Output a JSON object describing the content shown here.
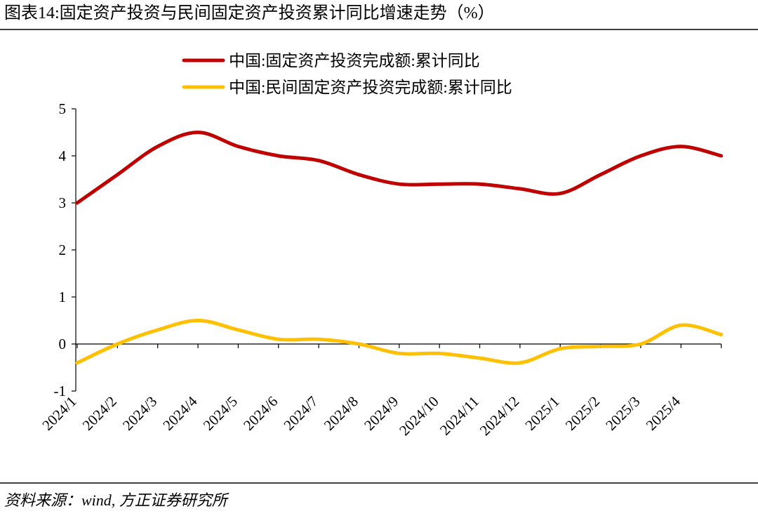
{
  "chart_data": {
    "type": "line",
    "title": "图表14:固定资产投资与民间固定资产投资累计同比增速走势（%）",
    "source": "资料来源：wind, 方正证券研究所",
    "categories": [
      "2024/1",
      "2024/2",
      "2024/3",
      "2024/4",
      "2024/5",
      "2024/6",
      "2024/7",
      "2024/8",
      "2024/9",
      "2024/10",
      "2024/11",
      "2024/12",
      "2025/1",
      "2025/2",
      "2025/3",
      "2025/4",
      null
    ],
    "series": [
      {
        "name": "中国:固定资产投资完成额:累计同比",
        "color": "#c00000",
        "values": [
          3.0,
          3.6,
          4.2,
          4.5,
          4.2,
          4.0,
          3.9,
          3.6,
          3.4,
          3.4,
          3.4,
          3.3,
          3.2,
          3.6,
          4.0,
          4.2,
          4.0
        ]
      },
      {
        "name": "中国:民间固定资产投资完成额:累计同比",
        "color": "#ffc000",
        "values": [
          -0.4,
          0.0,
          0.3,
          0.5,
          0.3,
          0.1,
          0.1,
          0.0,
          -0.2,
          -0.2,
          -0.3,
          -0.4,
          -0.1,
          -0.05,
          0.0,
          0.4,
          0.2
        ]
      }
    ],
    "ylim": [
      -1,
      5
    ],
    "yticks": [
      -1,
      0,
      1,
      2,
      3,
      4,
      5
    ],
    "legend": "top"
  }
}
